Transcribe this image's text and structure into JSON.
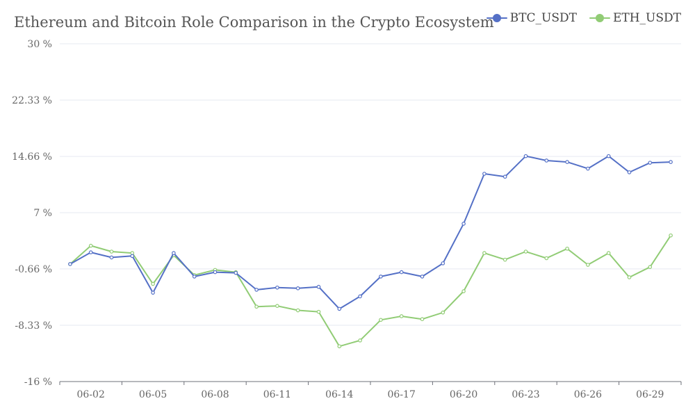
{
  "chart_data": {
    "type": "line",
    "title": "Ethereum and Bitcoin Role Comparison in the Crypto Ecosystem",
    "xlabel": "",
    "ylabel": "",
    "ylim": [
      -16,
      30
    ],
    "y_ticks": [
      "30 %",
      "22.33 %",
      "14.66 %",
      "7 %",
      "-0.66 %",
      "-8.33 %",
      "-16 %"
    ],
    "y_tick_values": [
      30,
      22.33,
      14.66,
      7,
      -0.66,
      -8.33,
      -16
    ],
    "x": [
      "06-01",
      "06-02",
      "06-03",
      "06-04",
      "06-05",
      "06-06",
      "06-07",
      "06-08",
      "06-09",
      "06-10",
      "06-11",
      "06-12",
      "06-13",
      "06-14",
      "06-15",
      "06-16",
      "06-17",
      "06-18",
      "06-19",
      "06-20",
      "06-21",
      "06-22",
      "06-23",
      "06-24",
      "06-25",
      "06-26",
      "06-27",
      "06-28",
      "06-29",
      "06-30"
    ],
    "x_tick_labels": [
      "06-02",
      "06-05",
      "06-08",
      "06-11",
      "06-14",
      "06-17",
      "06-20",
      "06-23",
      "06-26",
      "06-29"
    ],
    "grid": true,
    "legend_position": "top-right",
    "series": [
      {
        "name": "BTC_USDT",
        "color": "#5470c6",
        "values": [
          0,
          1.6,
          0.9,
          1.1,
          -3.9,
          1.5,
          -1.7,
          -1.1,
          -1.2,
          -3.5,
          -3.2,
          -3.3,
          -3.1,
          -6.1,
          -4.4,
          -1.7,
          -1.1,
          -1.7,
          0.1,
          5.5,
          12.3,
          11.9,
          14.7,
          14.1,
          13.9,
          13.0,
          14.7,
          12.5,
          13.8,
          13.9
        ]
      },
      {
        "name": "ETH_USDT",
        "color": "#91cc75",
        "values": [
          0,
          2.5,
          1.7,
          1.5,
          -2.7,
          1.2,
          -1.5,
          -0.8,
          -1.1,
          -5.8,
          -5.7,
          -6.3,
          -6.5,
          -11.2,
          -10.4,
          -7.6,
          -7.1,
          -7.5,
          -6.6,
          -3.7,
          1.5,
          0.6,
          1.7,
          0.8,
          2.1,
          -0.1,
          1.5,
          -1.8,
          -0.4,
          3.9
        ]
      }
    ]
  }
}
